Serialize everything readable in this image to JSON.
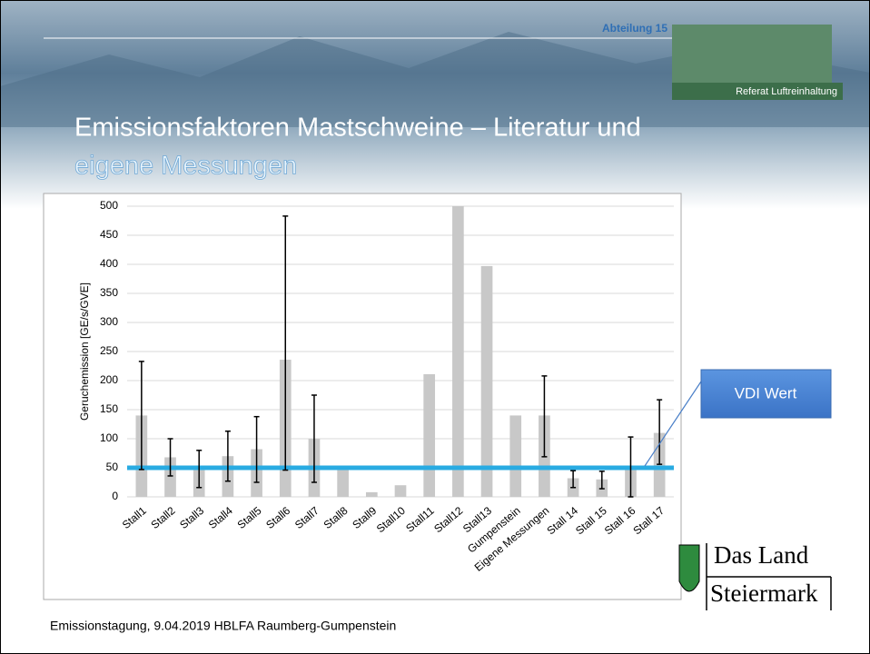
{
  "slide": {
    "department": "Abteilung 15",
    "referat": "Referat Luftreinhaltung",
    "title_lines": [
      "Emissionsfaktoren Mastschweine – Literatur und",
      "eigene Messungen"
    ],
    "logo_lines": [
      "Das Land",
      "Steiermark"
    ],
    "footer": "Emissionstagung, 9.04.2019 HBLFA Raumberg-Gumpenstein"
  },
  "chart_data": {
    "type": "bar",
    "y_label": "Geruchemission [GE/s/GVE]",
    "categories": [
      "Stall1",
      "Stall2",
      "Stall3",
      "Stall4",
      "Stall5",
      "Stall6",
      "Stall7",
      "Stall8",
      "Stall9",
      "Stall10",
      "Stall11",
      "Stall12",
      "Stall13",
      "Gumpenstein",
      "Eigene Messungen",
      "Stall 14",
      "Stall 15",
      "Stall 16",
      "Stall 17"
    ],
    "values": [
      140,
      68,
      48,
      70,
      82,
      236,
      100,
      50,
      8,
      20,
      211,
      500,
      397,
      140,
      140,
      32,
      30,
      52,
      110
    ],
    "error_minus": [
      93,
      32,
      32,
      43,
      57,
      190,
      75,
      null,
      null,
      null,
      null,
      null,
      null,
      null,
      71,
      16,
      16,
      52,
      54
    ],
    "error_plus": [
      93,
      32,
      32,
      43,
      56,
      247,
      75,
      null,
      null,
      null,
      null,
      null,
      null,
      null,
      68,
      13,
      14,
      51,
      57
    ],
    "color": "#c8c8c8",
    "error_color": "#000000",
    "reference_line": {
      "value": 50,
      "color": "#29abe2"
    },
    "annotation": "VDI Wert",
    "ylim": [
      0,
      500
    ],
    "yticks": [
      0,
      50,
      100,
      150,
      200,
      250,
      300,
      350,
      400,
      450,
      500
    ],
    "grid": true
  }
}
